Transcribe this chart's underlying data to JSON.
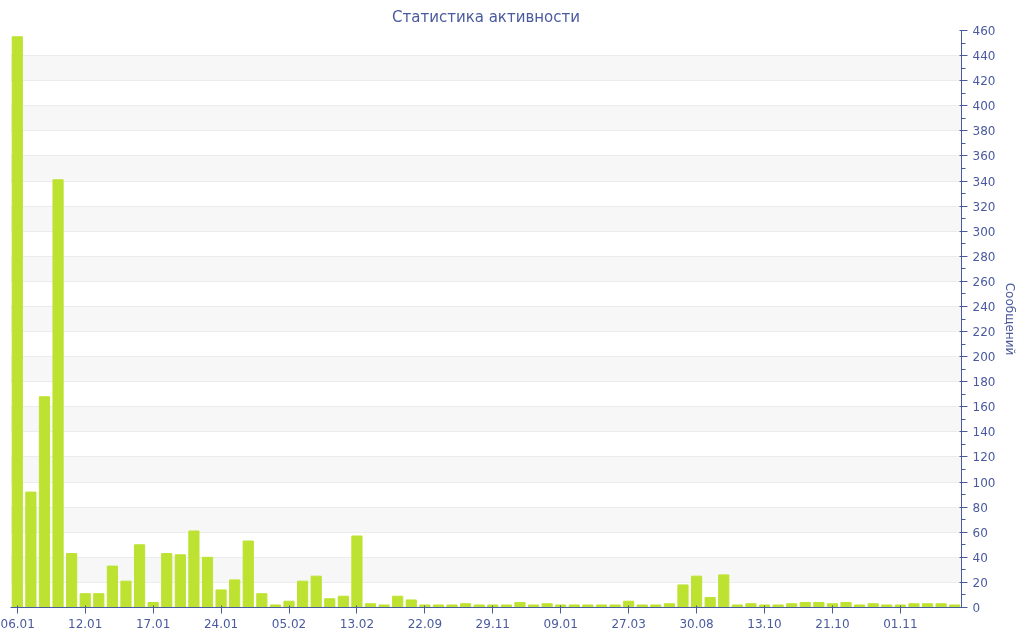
{
  "chart_data": {
    "type": "bar",
    "title": "Статистика активности",
    "ylabel": "Сообщений",
    "categories": [
      "06.01",
      null,
      null,
      null,
      null,
      "12.01",
      null,
      null,
      null,
      null,
      "17.01",
      null,
      null,
      null,
      null,
      "24.01",
      null,
      null,
      null,
      null,
      "05.02",
      null,
      null,
      null,
      null,
      "13.02",
      null,
      null,
      null,
      null,
      "22.09",
      null,
      null,
      null,
      null,
      "29.11",
      null,
      null,
      null,
      null,
      "09.01",
      null,
      null,
      null,
      null,
      "27.03",
      null,
      null,
      null,
      null,
      "30.08",
      null,
      null,
      null,
      null,
      "13.10",
      null,
      null,
      null,
      null,
      "21.10",
      null,
      null,
      null,
      null,
      "01.11",
      null,
      null,
      null,
      null
    ],
    "values": [
      455,
      92,
      168,
      341,
      43,
      11,
      11,
      33,
      21,
      50,
      4,
      43,
      42,
      61,
      40,
      14,
      22,
      53,
      11,
      2,
      5,
      21,
      25,
      7,
      9,
      57,
      3,
      2,
      9,
      6,
      2,
      2,
      2,
      3,
      2,
      2,
      2,
      4,
      2,
      3,
      2,
      2,
      2,
      2,
      2,
      5,
      2,
      2,
      3,
      18,
      25,
      8,
      26,
      2,
      3,
      2,
      2,
      3,
      4,
      4,
      3,
      4,
      2,
      3,
      2,
      2,
      3,
      3,
      3,
      2
    ],
    "color": "#bde231",
    "ylim": [
      0,
      460
    ],
    "yticks": [
      0,
      20,
      40,
      60,
      80,
      100,
      120,
      140,
      160,
      180,
      200,
      220,
      240,
      260,
      280,
      300,
      320,
      340,
      360,
      380,
      400,
      420,
      440,
      460
    ],
    "grid": "y"
  }
}
